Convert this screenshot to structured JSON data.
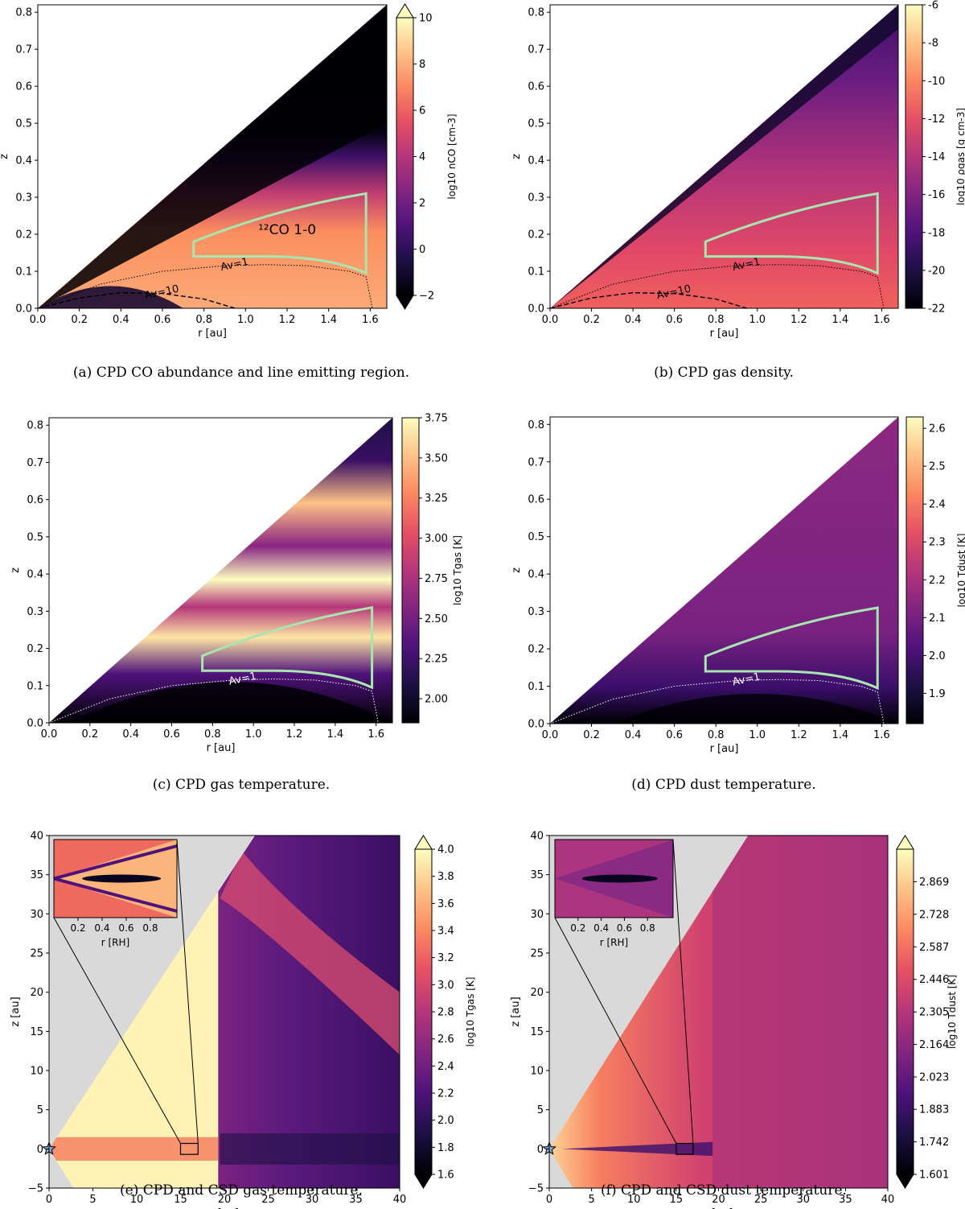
{
  "panels": [
    {
      "id": "a",
      "caption": "(a) CPD CO abundance and line emitting region.",
      "style": "co",
      "region_label": "¹²CO 1-0",
      "av_labels": [
        "Av=1",
        "Av=10"
      ],
      "chart_data": {
        "type": "heatmap",
        "title": "",
        "xlabel": "r [au]",
        "ylabel": "z",
        "xlim": [
          0.0,
          1.68
        ],
        "ylim": [
          0.0,
          0.82
        ],
        "xticks": [
          "0.0",
          "0.2",
          "0.4",
          "0.6",
          "0.8",
          "1.0",
          "1.2",
          "1.4",
          "1.6"
        ],
        "yticks": [
          "0.0",
          "0.1",
          "0.2",
          "0.3",
          "0.4",
          "0.5",
          "0.6",
          "0.7",
          "0.8"
        ],
        "colorbar": {
          "label": "log10 nCO [cm-3]",
          "range": [
            -2,
            10
          ],
          "ticks": [
            "−2",
            "0",
            "2",
            "4",
            "6",
            "8",
            "10"
          ],
          "extend": "both"
        },
        "emitting_region": {
          "r": [
            0.75,
            1.58
          ],
          "z_inner": [
            0.14,
            0.095
          ],
          "z_outer": [
            0.18,
            0.31
          ]
        },
        "contours": [
          {
            "label": "Av=1",
            "r": [
              0.0,
              0.3,
              0.6,
              0.9,
              1.1,
              1.3,
              1.5,
              1.58,
              1.6,
              1.61
            ],
            "z": [
              0.0,
              0.065,
              0.1,
              0.115,
              0.118,
              0.115,
              0.1,
              0.085,
              0.03,
              0.0
            ]
          },
          {
            "label": "Av=10",
            "r": [
              0.0,
              0.2,
              0.4,
              0.6,
              0.8,
              0.95
            ],
            "z": [
              0.0,
              0.028,
              0.042,
              0.04,
              0.025,
              0.0
            ]
          }
        ]
      }
    },
    {
      "id": "b",
      "caption": "(b) CPD gas density.",
      "style": "density",
      "region_label": "",
      "av_labels": [
        "Av=1",
        "Av=10"
      ],
      "chart_data": {
        "type": "heatmap",
        "title": "",
        "xlabel": "r [au]",
        "ylabel": "z",
        "xlim": [
          0.0,
          1.68
        ],
        "ylim": [
          0.0,
          0.82
        ],
        "xticks": [
          "0.0",
          "0.2",
          "0.4",
          "0.6",
          "0.8",
          "1.0",
          "1.2",
          "1.4",
          "1.6"
        ],
        "yticks": [
          "0.0",
          "0.1",
          "0.2",
          "0.3",
          "0.4",
          "0.5",
          "0.6",
          "0.7",
          "0.8"
        ],
        "colorbar": {
          "label": "log10 ρgas [g cm-3]",
          "range": [
            -22,
            -6
          ],
          "ticks": [
            "-22",
            "-20",
            "-18",
            "-16",
            "-14",
            "-12",
            "-10",
            "-8",
            "-6"
          ],
          "extend": "none"
        },
        "emitting_region": {
          "r": [
            0.75,
            1.58
          ],
          "z_inner": [
            0.14,
            0.095
          ],
          "z_outer": [
            0.18,
            0.31
          ]
        },
        "contours": [
          {
            "label": "Av=1",
            "r": [
              0.0,
              0.3,
              0.6,
              0.9,
              1.1,
              1.3,
              1.5,
              1.58,
              1.6,
              1.61
            ],
            "z": [
              0.0,
              0.065,
              0.1,
              0.115,
              0.118,
              0.115,
              0.1,
              0.085,
              0.03,
              0.0
            ]
          },
          {
            "label": "Av=10",
            "r": [
              0.0,
              0.2,
              0.4,
              0.6,
              0.8,
              0.95
            ],
            "z": [
              0.0,
              0.028,
              0.042,
              0.04,
              0.025,
              0.0
            ]
          }
        ]
      }
    },
    {
      "id": "c",
      "caption": "(c) CPD gas temperature.",
      "style": "tgas",
      "region_label": "",
      "av_labels": [
        "Av=1"
      ],
      "chart_data": {
        "type": "heatmap",
        "title": "",
        "xlabel": "r [au]",
        "ylabel": "z",
        "xlim": [
          0.0,
          1.68
        ],
        "ylim": [
          0.0,
          0.82
        ],
        "xticks": [
          "0.0",
          "0.2",
          "0.4",
          "0.6",
          "0.8",
          "1.0",
          "1.2",
          "1.4",
          "1.6"
        ],
        "yticks": [
          "0.0",
          "0.1",
          "0.2",
          "0.3",
          "0.4",
          "0.5",
          "0.6",
          "0.7",
          "0.8"
        ],
        "colorbar": {
          "label": "log10 Tgas [K]",
          "range": [
            1.85,
            3.75
          ],
          "ticks": [
            "2.00",
            "2.25",
            "2.50",
            "2.75",
            "3.00",
            "3.25",
            "3.50",
            "3.75"
          ],
          "tick_values": [
            2.0,
            2.25,
            2.5,
            2.75,
            3.0,
            3.25,
            3.5,
            3.75
          ],
          "extend": "none"
        },
        "emitting_region": {
          "r": [
            0.75,
            1.58
          ],
          "z_inner": [
            0.14,
            0.095
          ],
          "z_outer": [
            0.18,
            0.31
          ]
        },
        "contours": [
          {
            "label": "Av=1",
            "r": [
              0.0,
              0.3,
              0.6,
              0.9,
              1.1,
              1.3,
              1.5,
              1.58,
              1.6,
              1.61
            ],
            "z": [
              0.0,
              0.065,
              0.1,
              0.115,
              0.118,
              0.115,
              0.1,
              0.085,
              0.03,
              0.0
            ]
          }
        ]
      }
    },
    {
      "id": "d",
      "caption": "(d) CPD dust temperature.",
      "style": "tdust",
      "region_label": "",
      "av_labels": [
        "Av=1"
      ],
      "chart_data": {
        "type": "heatmap",
        "title": "",
        "xlabel": "r [au]",
        "ylabel": "z",
        "xlim": [
          0.0,
          1.68
        ],
        "ylim": [
          0.0,
          0.82
        ],
        "xticks": [
          "0.0",
          "0.2",
          "0.4",
          "0.6",
          "0.8",
          "1.0",
          "1.2",
          "1.4",
          "1.6"
        ],
        "yticks": [
          "0.0",
          "0.1",
          "0.2",
          "0.3",
          "0.4",
          "0.5",
          "0.6",
          "0.7",
          "0.8"
        ],
        "colorbar": {
          "label": "log10 Tdust [K]",
          "range": [
            1.82,
            2.63
          ],
          "ticks": [
            "1.9",
            "2.0",
            "2.1",
            "2.2",
            "2.3",
            "2.4",
            "2.5",
            "2.6"
          ],
          "tick_values": [
            1.9,
            2.0,
            2.1,
            2.2,
            2.3,
            2.4,
            2.5,
            2.6
          ],
          "extend": "none"
        },
        "emitting_region": {
          "r": [
            0.75,
            1.58
          ],
          "z_inner": [
            0.14,
            0.095
          ],
          "z_outer": [
            0.18,
            0.31
          ]
        },
        "contours": [
          {
            "label": "Av=1",
            "r": [
              0.0,
              0.3,
              0.6,
              0.9,
              1.1,
              1.3,
              1.5,
              1.58,
              1.6,
              1.61
            ],
            "z": [
              0.0,
              0.065,
              0.1,
              0.115,
              0.118,
              0.115,
              0.1,
              0.085,
              0.03,
              0.0
            ]
          }
        ]
      }
    },
    {
      "id": "e",
      "caption": "(e) CPD and CSD gas temperature.",
      "style": "csd_gas",
      "region_label": "",
      "av_labels": [],
      "chart_data": {
        "type": "heatmap",
        "title": "",
        "xlabel": "r [au]",
        "ylabel": "z [au]",
        "xlim": [
          0,
          40
        ],
        "ylim": [
          -5,
          40
        ],
        "xticks": [
          "0",
          "5",
          "10",
          "15",
          "20",
          "25",
          "30",
          "35",
          "40"
        ],
        "yticks": [
          "−5",
          "0",
          "5",
          "10",
          "15",
          "20",
          "25",
          "30",
          "35",
          "40"
        ],
        "colorbar": {
          "label": "log10 Tgas [K]",
          "range": [
            1.6,
            4.0
          ],
          "ticks": [
            "1.6",
            "1.8",
            "2.0",
            "2.2",
            "2.4",
            "2.6",
            "2.8",
            "3.0",
            "3.2",
            "3.4",
            "3.6",
            "3.8",
            "4.0"
          ],
          "extend": "both"
        },
        "planet_box": {
          "r": [
            15.0,
            17.0
          ],
          "z": [
            -0.7,
            0.7
          ]
        },
        "inset": {
          "xlabel": "r [RH]",
          "xticks": [
            "0.2",
            "0.4",
            "0.6",
            "0.8"
          ]
        }
      }
    },
    {
      "id": "f",
      "caption": "(f) CPD and CSD dust temperature.",
      "style": "csd_dust",
      "region_label": "",
      "av_labels": [],
      "chart_data": {
        "type": "heatmap",
        "title": "",
        "xlabel": "r [au]",
        "ylabel": "z [au]",
        "xlim": [
          0,
          40
        ],
        "ylim": [
          -5,
          40
        ],
        "xticks": [
          "0",
          "5",
          "10",
          "15",
          "20",
          "25",
          "30",
          "35",
          "40"
        ],
        "yticks": [
          "−5",
          "0",
          "5",
          "10",
          "15",
          "20",
          "25",
          "30",
          "35",
          "40"
        ],
        "colorbar": {
          "label": "log10 Tdust [K]",
          "range": [
            1.601,
            3.01
          ],
          "ticks": [
            "1.601",
            "1.742",
            "1.883",
            "2.023",
            "2.164",
            "2.305",
            "2.446",
            "2.587",
            "2.728",
            "2.869"
          ],
          "extend": "both"
        },
        "planet_box": {
          "r": [
            15.0,
            17.0
          ],
          "z": [
            -0.7,
            0.7
          ]
        },
        "inset": {
          "xlabel": "r [RH]",
          "xticks": [
            "0.2",
            "0.4",
            "0.6",
            "0.8"
          ]
        }
      }
    }
  ]
}
